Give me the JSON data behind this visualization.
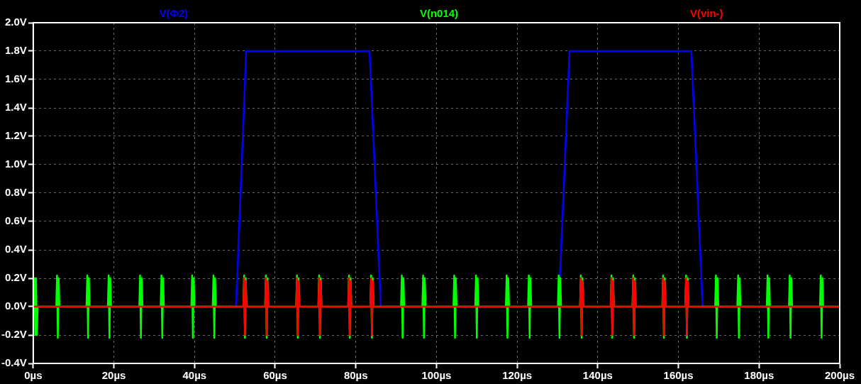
{
  "chart_data": {
    "type": "line",
    "legend": "top",
    "grid": true,
    "marker": "none",
    "line_style": "solid",
    "xlim": [
      0,
      200
    ],
    "ylim": [
      -0.4,
      2.0
    ],
    "xticks": [
      {
        "value": 0,
        "label": "0µs"
      },
      {
        "value": 20,
        "label": "20µs"
      },
      {
        "value": 40,
        "label": "40µs"
      },
      {
        "value": 60,
        "label": "60µs"
      },
      {
        "value": 80,
        "label": "80µs"
      },
      {
        "value": 100,
        "label": "100µs"
      },
      {
        "value": 120,
        "label": "120µs"
      },
      {
        "value": 140,
        "label": "140µs"
      },
      {
        "value": 160,
        "label": "160µs"
      },
      {
        "value": 180,
        "label": "180µs"
      },
      {
        "value": 200,
        "label": "200µs"
      }
    ],
    "yticks": [
      {
        "value": -0.4,
        "label": "-0.4V"
      },
      {
        "value": -0.2,
        "label": "-0.2V"
      },
      {
        "value": 0,
        "label": "0.0V"
      },
      {
        "value": 0.2,
        "label": "0.2V"
      },
      {
        "value": 0.4,
        "label": "0.4V"
      },
      {
        "value": 0.6,
        "label": "0.6V"
      },
      {
        "value": 0.8,
        "label": "0.8V"
      },
      {
        "value": 1.0,
        "label": "1.0V"
      },
      {
        "value": 1.2,
        "label": "1.2V"
      },
      {
        "value": 1.4,
        "label": "1.4V"
      },
      {
        "value": 1.6,
        "label": "1.6V"
      },
      {
        "value": 1.8,
        "label": "1.8V"
      },
      {
        "value": 2.0,
        "label": "2.0V"
      }
    ],
    "series": [
      {
        "name": "V(Φ2)",
        "color": "#0000ff",
        "x": [
          0,
          50.3,
          52.8,
          83.4,
          86.2,
          130.3,
          133.0,
          163.2,
          166.0,
          200
        ],
        "values": [
          0,
          0,
          1.8,
          1.8,
          0,
          0,
          1.8,
          1.8,
          0,
          0
        ]
      },
      {
        "name": "V(n014)",
        "color": "#00ff00",
        "x": [
          0,
          0.3,
          0.5,
          0.7,
          0.9,
          1.1,
          5.7,
          5.9,
          6.1,
          6.3,
          6.5,
          13.2,
          13.4,
          13.6,
          13.8,
          14.0,
          18.5,
          18.7,
          18.9,
          19.1,
          19.3,
          26.3,
          26.5,
          26.7,
          26.9,
          27.1,
          31.6,
          31.8,
          32.0,
          32.2,
          32.4,
          39.2,
          39.4,
          39.6,
          39.8,
          40.0,
          44.5,
          44.7,
          44.9,
          45.1,
          45.3,
          52.1,
          52.3,
          52.5,
          52.7,
          52.9,
          57.5,
          57.7,
          57.9,
          58.1,
          58.3,
          65.2,
          65.4,
          65.6,
          65.8,
          66.0,
          70.7,
          70.9,
          71.1,
          71.3,
          71.5,
          78.1,
          78.3,
          78.5,
          78.7,
          78.9,
          83.6,
          83.8,
          84.0,
          84.2,
          84.4,
          91.2,
          91.4,
          91.6,
          91.8,
          92.0,
          96.5,
          96.7,
          96.9,
          97.1,
          97.3,
          104.2,
          104.4,
          104.6,
          104.8,
          105.0,
          109.6,
          109.8,
          110.0,
          110.2,
          110.4,
          117.2,
          117.4,
          117.6,
          117.8,
          118.0,
          122.7,
          122.9,
          123.1,
          123.3,
          123.5,
          130.1,
          130.3,
          130.5,
          130.7,
          130.9,
          135.6,
          135.8,
          136.0,
          136.2,
          136.4,
          143.2,
          143.4,
          143.6,
          143.8,
          144.0,
          148.6,
          148.8,
          149.0,
          149.2,
          149.4,
          156.0,
          156.2,
          156.4,
          156.6,
          156.8,
          161.7,
          161.9,
          162.1,
          162.3,
          162.5,
          169.1,
          169.3,
          169.5,
          169.7,
          169.9,
          174.6,
          174.8,
          175.0,
          175.2,
          175.4,
          181.9,
          182.1,
          182.3,
          182.5,
          182.7,
          187.4,
          187.6,
          187.8,
          188.0,
          188.2,
          195.1,
          195.3,
          195.5,
          195.7,
          195.9,
          200
        ],
        "values": [
          0,
          0.2,
          -0.2,
          0.2,
          -0.2,
          0,
          0,
          0.22,
          -0.22,
          0.2,
          0,
          0,
          0.22,
          -0.22,
          0.2,
          0,
          0,
          0.22,
          -0.22,
          0.2,
          0,
          0,
          0.22,
          -0.22,
          0.2,
          0,
          0,
          0.22,
          -0.22,
          0.2,
          0,
          0,
          0.22,
          -0.22,
          0.2,
          0,
          0,
          0.22,
          -0.22,
          0.2,
          0,
          0,
          0.22,
          -0.22,
          0.2,
          0,
          0,
          0.22,
          -0.22,
          0.2,
          0,
          0,
          0.22,
          -0.22,
          0.2,
          0,
          0,
          0.22,
          -0.22,
          0.2,
          0,
          0,
          0.22,
          -0.22,
          0.2,
          0,
          0,
          0.22,
          -0.22,
          0.2,
          0,
          0,
          0.22,
          -0.22,
          0.2,
          0,
          0,
          0.22,
          -0.22,
          0.2,
          0,
          0,
          0.22,
          -0.22,
          0.2,
          0,
          0,
          0.22,
          -0.22,
          0.2,
          0,
          0,
          0.22,
          -0.22,
          0.2,
          0,
          0,
          0.22,
          -0.22,
          0.2,
          0,
          0,
          0.22,
          -0.22,
          0.2,
          0,
          0,
          0.22,
          -0.22,
          0.2,
          0,
          0,
          0.22,
          -0.22,
          0.2,
          0,
          0,
          0.22,
          -0.22,
          0.2,
          0,
          0,
          0.22,
          -0.22,
          0.2,
          0,
          0,
          0.22,
          -0.22,
          0.2,
          0,
          0,
          0.22,
          -0.22,
          0.2,
          0,
          0,
          0.22,
          -0.22,
          0.2,
          0,
          0,
          0.22,
          -0.22,
          0.2,
          0,
          0,
          0.22,
          -0.22,
          0.2,
          0,
          0,
          0.22,
          -0.22,
          0.2,
          0,
          0
        ]
      },
      {
        "name": "V(vin-)",
        "color": "#ff0000",
        "x": [
          0,
          52.1,
          52.3,
          52.5,
          52.7,
          52.9,
          57.5,
          57.7,
          57.9,
          58.1,
          58.3,
          65.2,
          65.4,
          65.6,
          65.8,
          66.0,
          70.7,
          70.9,
          71.1,
          71.3,
          71.5,
          78.1,
          78.3,
          78.5,
          78.7,
          78.9,
          83.6,
          83.8,
          84.0,
          84.2,
          84.4,
          135.6,
          135.8,
          136.0,
          136.2,
          136.4,
          143.2,
          143.4,
          143.6,
          143.8,
          144.0,
          148.6,
          148.8,
          149.0,
          149.2,
          149.4,
          156.0,
          156.2,
          156.4,
          156.6,
          156.8,
          161.7,
          161.9,
          162.1,
          162.3,
          162.5,
          200
        ],
        "values": [
          0,
          0,
          0.2,
          -0.2,
          0.18,
          0,
          0,
          0.2,
          -0.2,
          0.18,
          0,
          0,
          0.2,
          -0.2,
          0.18,
          0,
          0,
          0.2,
          -0.2,
          0.18,
          0,
          0,
          0.2,
          -0.2,
          0.18,
          0,
          0,
          0.2,
          -0.2,
          0.18,
          0,
          0,
          0.2,
          -0.2,
          0.18,
          0,
          0,
          0.2,
          -0.2,
          0.18,
          0,
          0,
          0.2,
          -0.2,
          0.18,
          0,
          0,
          0.2,
          -0.2,
          0.18,
          0,
          0,
          0.2,
          -0.2,
          0.18,
          0,
          0
        ]
      }
    ]
  }
}
